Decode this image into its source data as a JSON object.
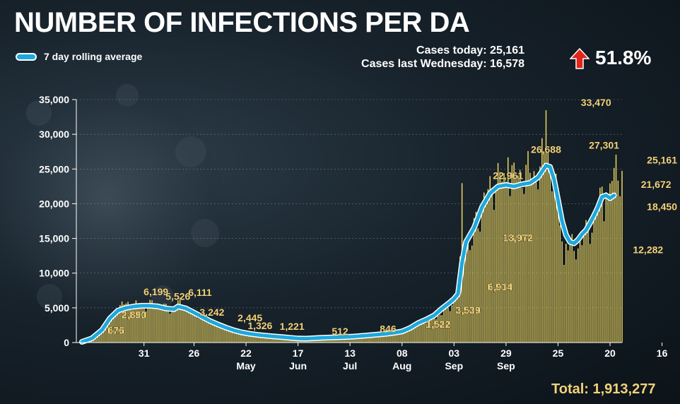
{
  "title": "NUMBER OF INFECTIONS PER DA",
  "legend": {
    "label": "7 day rolling average"
  },
  "stats": {
    "today_label": "Cases today: 25,161",
    "last_week_label": "Cases last Wednesday: 16,578",
    "change": "51.8%"
  },
  "total": "Total: 1,913,277",
  "colors": {
    "bars": "#e6cf5e",
    "line": "#1ca8dd",
    "line_outline": "#ffffff",
    "axis_text": "#ffffff",
    "annotation": "#f2d27a",
    "arrow": "#e0251b"
  },
  "chart_data": {
    "type": "bar",
    "ylim": [
      0,
      35000
    ],
    "yticks": [
      0,
      5000,
      10000,
      15000,
      20000,
      25000,
      30000,
      35000
    ],
    "ytick_labels": [
      "0",
      "5,000",
      "10,000",
      "15,000",
      "20,000",
      "25,000",
      "30,000",
      "35,000"
    ],
    "xticks": [
      {
        "day": 31,
        "label": "31"
      },
      {
        "day": 56,
        "label": "26"
      },
      {
        "day": 82,
        "label": "22"
      },
      {
        "day": 108,
        "label": "17"
      },
      {
        "day": 134,
        "label": "13"
      },
      {
        "day": 160,
        "label": "08"
      },
      {
        "day": 186,
        "label": "03"
      },
      {
        "day": 212,
        "label": "29"
      },
      {
        "day": 238,
        "label": "25"
      },
      {
        "day": 264,
        "label": "20"
      },
      {
        "day": 290,
        "label": "16"
      }
    ],
    "month_labels": [
      {
        "day": 82,
        "label": "May"
      },
      {
        "day": 108,
        "label": "Jun"
      },
      {
        "day": 134,
        "label": "Jul"
      },
      {
        "day": 160,
        "label": "Aug"
      },
      {
        "day": 186,
        "label": "Sep"
      },
      {
        "day": 212,
        "label": "Sep"
      }
    ],
    "annotations": [
      {
        "day": 17,
        "value": 676,
        "label": "676"
      },
      {
        "day": 26,
        "value": 2890,
        "label": "2,890"
      },
      {
        "day": 37,
        "value": 6199,
        "label": "6,199"
      },
      {
        "day": 48,
        "value": 5526,
        "label": "5,526"
      },
      {
        "day": 59,
        "value": 6111,
        "label": "6,111"
      },
      {
        "day": 65,
        "value": 3242,
        "label": "3,242"
      },
      {
        "day": 84,
        "value": 2445,
        "label": "2,445"
      },
      {
        "day": 89,
        "value": 1326,
        "label": "1,326"
      },
      {
        "day": 105,
        "value": 1221,
        "label": "1,221"
      },
      {
        "day": 129,
        "value": 512,
        "label": "512"
      },
      {
        "day": 153,
        "value": 846,
        "label": "846"
      },
      {
        "day": 178,
        "value": 1522,
        "label": "1,522"
      },
      {
        "day": 193,
        "value": 3539,
        "label": "3,539"
      },
      {
        "day": 209,
        "value": 6914,
        "label": "6,914"
      },
      {
        "day": 213,
        "value": 22961,
        "label": "22,961"
      },
      {
        "day": 218,
        "value": 13972,
        "label": "13,972"
      },
      {
        "day": 232,
        "value": 26688,
        "label": "26,688"
      },
      {
        "day": 257,
        "value": 33470,
        "label": "33,470"
      },
      {
        "day": 261,
        "value": 27301,
        "label": "27,301"
      },
      {
        "day": 283,
        "value": 12282,
        "label": "12,282"
      },
      {
        "day": 287,
        "value": 21672,
        "label": "21,672"
      },
      {
        "day": 290,
        "value": 25161,
        "label": "25,161"
      },
      {
        "day": 290,
        "value": 18450,
        "label": "18,450"
      }
    ],
    "daily_keyframes": [
      [
        0,
        80
      ],
      [
        5,
        500
      ],
      [
        10,
        1500
      ],
      [
        14,
        3200
      ],
      [
        16,
        4200
      ],
      [
        18,
        4900
      ],
      [
        20,
        5400
      ],
      [
        24,
        5600
      ],
      [
        28,
        5300
      ],
      [
        32,
        5200
      ],
      [
        36,
        5700
      ],
      [
        40,
        5300
      ],
      [
        44,
        4500
      ],
      [
        46,
        4700
      ],
      [
        48,
        5800
      ],
      [
        51,
        5100
      ],
      [
        55,
        4300
      ],
      [
        60,
        3600
      ],
      [
        64,
        3100
      ],
      [
        68,
        2600
      ],
      [
        72,
        2100
      ],
      [
        76,
        1700
      ],
      [
        80,
        1500
      ],
      [
        84,
        1300
      ],
      [
        88,
        1100
      ],
      [
        92,
        950
      ],
      [
        96,
        880
      ],
      [
        100,
        780
      ],
      [
        104,
        680
      ],
      [
        108,
        560
      ],
      [
        112,
        520
      ],
      [
        116,
        560
      ],
      [
        120,
        620
      ],
      [
        124,
        660
      ],
      [
        128,
        710
      ],
      [
        132,
        760
      ],
      [
        136,
        860
      ],
      [
        140,
        960
      ],
      [
        144,
        1060
      ],
      [
        148,
        1160
      ],
      [
        152,
        1240
      ],
      [
        156,
        1350
      ],
      [
        160,
        1500
      ],
      [
        164,
        2000
      ],
      [
        168,
        2600
      ],
      [
        172,
        3000
      ],
      [
        176,
        3600
      ],
      [
        180,
        4200
      ],
      [
        184,
        5200
      ],
      [
        186,
        6200
      ],
      [
        188,
        6900
      ],
      [
        190,
        15000
      ],
      [
        192,
        16000
      ],
      [
        194,
        13000
      ],
      [
        196,
        16500
      ],
      [
        200,
        19500
      ],
      [
        204,
        22000
      ],
      [
        208,
        23500
      ],
      [
        212,
        23000
      ],
      [
        216,
        23500
      ],
      [
        220,
        24500
      ],
      [
        224,
        24000
      ],
      [
        228,
        25000
      ],
      [
        232,
        26000
      ],
      [
        236,
        23000
      ],
      [
        238,
        20000
      ],
      [
        240,
        16000
      ],
      [
        243,
        14000
      ],
      [
        246,
        13500
      ],
      [
        250,
        14500
      ],
      [
        254,
        16500
      ],
      [
        256,
        18000
      ],
      [
        258,
        19500
      ],
      [
        260,
        21000
      ],
      [
        262,
        18450
      ],
      [
        264,
        21500
      ],
      [
        266,
        25000
      ]
    ],
    "spikes": [
      {
        "day": 190,
        "value": 22961
      },
      {
        "day": 195,
        "value": 13972
      },
      {
        "day": 213,
        "value": 26688
      },
      {
        "day": 232,
        "value": 33470
      },
      {
        "day": 233,
        "value": 27301
      },
      {
        "day": 241,
        "value": 11200
      },
      {
        "day": 262,
        "value": 21672
      },
      {
        "day": 266,
        "value": 25161
      }
    ],
    "rolling_average": [
      [
        0,
        100
      ],
      [
        5,
        600
      ],
      [
        10,
        1800
      ],
      [
        14,
        3500
      ],
      [
        18,
        4600
      ],
      [
        22,
        5000
      ],
      [
        26,
        5200
      ],
      [
        30,
        5300
      ],
      [
        34,
        5300
      ],
      [
        38,
        5200
      ],
      [
        42,
        4900
      ],
      [
        46,
        4800
      ],
      [
        48,
        5200
      ],
      [
        52,
        4900
      ],
      [
        56,
        4300
      ],
      [
        60,
        3700
      ],
      [
        64,
        3100
      ],
      [
        68,
        2600
      ],
      [
        72,
        2150
      ],
      [
        76,
        1750
      ],
      [
        80,
        1450
      ],
      [
        84,
        1250
      ],
      [
        88,
        1100
      ],
      [
        92,
        980
      ],
      [
        96,
        880
      ],
      [
        100,
        780
      ],
      [
        104,
        680
      ],
      [
        108,
        580
      ],
      [
        112,
        560
      ],
      [
        116,
        620
      ],
      [
        120,
        680
      ],
      [
        124,
        720
      ],
      [
        128,
        760
      ],
      [
        132,
        800
      ],
      [
        136,
        860
      ],
      [
        140,
        960
      ],
      [
        144,
        1060
      ],
      [
        148,
        1160
      ],
      [
        152,
        1250
      ],
      [
        156,
        1400
      ],
      [
        160,
        1600
      ],
      [
        164,
        2100
      ],
      [
        168,
        2800
      ],
      [
        172,
        3300
      ],
      [
        176,
        3900
      ],
      [
        180,
        4900
      ],
      [
        184,
        5800
      ],
      [
        186,
        6300
      ],
      [
        188,
        7000
      ],
      [
        190,
        11500
      ],
      [
        192,
        14500
      ],
      [
        194,
        15500
      ],
      [
        196,
        16500
      ],
      [
        200,
        19500
      ],
      [
        204,
        21500
      ],
      [
        208,
        22500
      ],
      [
        212,
        22700
      ],
      [
        216,
        22500
      ],
      [
        220,
        22800
      ],
      [
        224,
        23000
      ],
      [
        228,
        23800
      ],
      [
        232,
        25500
      ],
      [
        234,
        25300
      ],
      [
        236,
        23500
      ],
      [
        238,
        20500
      ],
      [
        240,
        17500
      ],
      [
        242,
        15500
      ],
      [
        244,
        14500
      ],
      [
        246,
        14300
      ],
      [
        248,
        14800
      ],
      [
        250,
        15600
      ],
      [
        252,
        16200
      ],
      [
        254,
        17200
      ],
      [
        256,
        18300
      ],
      [
        258,
        19500
      ],
      [
        260,
        21000
      ],
      [
        262,
        21200
      ],
      [
        264,
        20800
      ],
      [
        266,
        21200
      ]
    ]
  }
}
